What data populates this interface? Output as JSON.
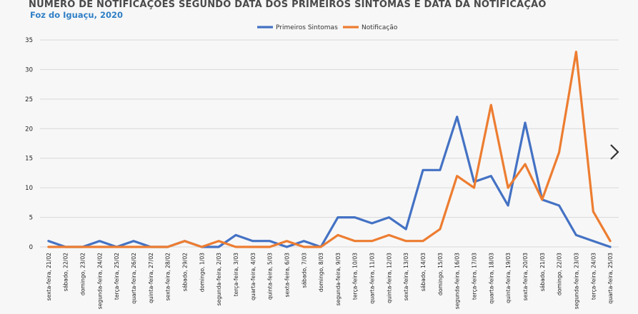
{
  "header": {
    "title": "NÚMERO DE NOTIFICAÇÕES SEGUNDO DATA DOS PRIMEIROS SINTOMAS E DATA DA NOTIFICAÇÃO",
    "subtitle": "Foz do Iguaçu, 2020"
  },
  "nav": {
    "next_icon": "chevron-right-icon"
  },
  "chart_data": {
    "type": "line",
    "title": "NÚMERO DE NOTIFICAÇÕES SEGUNDO DATA DOS PRIMEIROS SINTOMAS E DATA DA NOTIFICAÇÃO",
    "subtitle": "Foz do Iguaçu, 2020",
    "xlabel": "",
    "ylabel": "",
    "ylim": [
      0,
      35
    ],
    "yticks": [
      0,
      5,
      10,
      15,
      20,
      25,
      30,
      35
    ],
    "grid": true,
    "legend_position": "top-center",
    "categories": [
      "sexta-feira, 21/02",
      "sábado, 22/02",
      "domingo, 23/02",
      "segunda-feira, 24/02",
      "terça-feira, 25/02",
      "quarta-feira, 26/02",
      "quinta-feira, 27/02",
      "sexta-feira, 28/02",
      "sábado, 29/02",
      "domingo, 1/03",
      "segunda-feira, 2/03",
      "terça-feira, 3/03",
      "quarta-feira, 4/03",
      "quinta-feira, 5/03",
      "sexta-feira, 6/03",
      "sábado, 7/03",
      "domingo, 8/03",
      "segunda-feira, 9/03",
      "terça-feira, 10/03",
      "quarta-feira, 11/03",
      "quinta-feira, 12/03",
      "sexta-feira, 13/03",
      "sábado, 14/03",
      "domingo, 15/03",
      "segunda-feira, 16/03",
      "terça-feira, 17/03",
      "quarta-feira, 18/03",
      "quinta-feira, 19/03",
      "sexta-feira, 20/03",
      "sábado, 21/03",
      "domingo, 22/03",
      "segunda-feira, 23/03",
      "terça-feira, 24/03",
      "quarta-feira, 25/03"
    ],
    "series": [
      {
        "name": "Primeiros Sintomas",
        "color": "#4472c4",
        "values": [
          1,
          0,
          0,
          1,
          0,
          1,
          0,
          0,
          1,
          0,
          0,
          2,
          1,
          1,
          0,
          1,
          0,
          5,
          5,
          4,
          5,
          3,
          13,
          13,
          22,
          11,
          12,
          7,
          21,
          8,
          7,
          2,
          1,
          0
        ]
      },
      {
        "name": "Notificação",
        "color": "#ed7d31",
        "values": [
          0,
          0,
          0,
          0,
          0,
          0,
          0,
          0,
          1,
          0,
          1,
          0,
          0,
          0,
          1,
          0,
          0,
          2,
          1,
          1,
          2,
          1,
          1,
          3,
          12,
          10,
          24,
          10,
          14,
          8,
          16,
          33,
          6,
          1
        ]
      }
    ]
  }
}
